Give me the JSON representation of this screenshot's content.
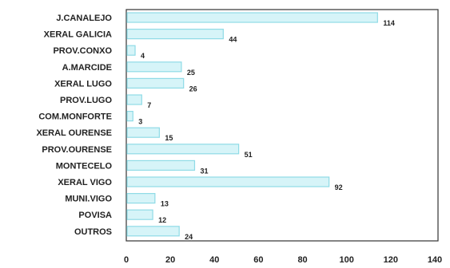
{
  "colors": {
    "bar_fill": "#d6f4f8",
    "bar_stroke": "#8fdbe6",
    "frame": "#333333",
    "text": "#222222",
    "background": "#ffffff"
  },
  "chart_data": {
    "type": "bar",
    "orientation": "horizontal",
    "categories": [
      "J.CANALEJO",
      "XERAL GALICIA",
      "PROV.CONXO",
      "A.MARCIDE",
      "XERAL LUGO",
      "PROV.LUGO",
      "COM.MONFORTE",
      "XERAL OURENSE",
      "PROV.OURENSE",
      "MONTECELO",
      "XERAL VIGO",
      "MUNI.VIGO",
      "POVISA",
      "OUTROS"
    ],
    "values": [
      114,
      44,
      4,
      25,
      26,
      7,
      3,
      15,
      51,
      31,
      92,
      13,
      12,
      24
    ],
    "value_labels": [
      "114",
      "44",
      "4",
      "25",
      "26",
      "7",
      "3",
      "15",
      "51",
      "31",
      "92",
      "13",
      "12",
      "24"
    ],
    "x_ticks": [
      "0",
      "20",
      "40",
      "60",
      "80",
      "100",
      "120",
      "140"
    ],
    "xlim": [
      0,
      140
    ],
    "grid": false,
    "legend": "none"
  }
}
